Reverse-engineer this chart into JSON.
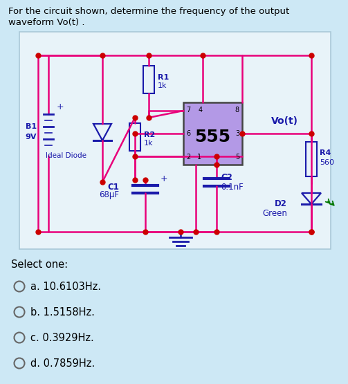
{
  "bg_color": "#cde8f5",
  "circuit_bg": "#e8f3f9",
  "title_line1": "For the circuit shown, determine the frequency of the output",
  "title_line2": "waveform Vo(t) .",
  "title_fontsize": 9.5,
  "select_text": "Select one:",
  "options": [
    "a. 10.6103Hz.",
    "b. 1.5158Hz.",
    "c. 0.3929Hz.",
    "d. 0.7859Hz."
  ],
  "option_fontsize": 10.5,
  "wire_color": "#e8007a",
  "component_color": "#1a1aaa",
  "text_color": "#1a1aaa",
  "label_color": "#8B0000",
  "pin_color": "#cc0000",
  "ic_face": "#b399e6",
  "ic_edge": "#444444",
  "ground_color": "#1a1aaa",
  "green_color": "#007700"
}
